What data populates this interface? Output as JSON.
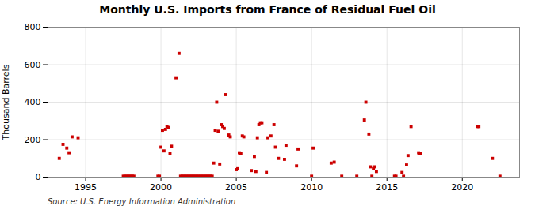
{
  "chart_data": {
    "type": "scatter",
    "title": "Monthly U.S. Imports from France of Residual Fuel Oil",
    "ylabel": "Thousand Barrels",
    "annotations": [
      "Source: U.S. Energy Information Administration"
    ],
    "color": "#cc0000",
    "marker": "square",
    "grid": true,
    "xlim": [
      1992.5,
      2023.8
    ],
    "xticks": [
      1995,
      2000,
      2005,
      2010,
      2015,
      2020
    ],
    "ylim": [
      0,
      800
    ],
    "yticks": [
      0,
      200,
      400,
      600,
      800
    ],
    "x": [
      1993.25,
      1993.5,
      1993.75,
      1993.9,
      1994.1,
      1994.5,
      1997.5,
      1997.6,
      1997.7,
      1997.8,
      1997.9,
      1998.0,
      1998.1,
      1998.2,
      1999.8,
      1999.9,
      2000.0,
      2000.1,
      2000.2,
      2000.3,
      2000.4,
      2000.5,
      2000.6,
      2000.7,
      2001.0,
      2001.2,
      2001.3,
      2001.4,
      2001.5,
      2001.6,
      2001.7,
      2001.8,
      2001.9,
      2002.0,
      2002.1,
      2002.2,
      2002.3,
      2002.4,
      2002.5,
      2002.6,
      2002.7,
      2002.8,
      2002.9,
      2003.0,
      2003.1,
      2003.2,
      2003.3,
      2003.4,
      2003.5,
      2003.6,
      2003.7,
      2003.8,
      2003.9,
      2004.0,
      2004.1,
      2004.2,
      2004.3,
      2004.5,
      2004.6,
      2005.0,
      2005.1,
      2005.2,
      2005.3,
      2005.4,
      2005.5,
      2006.0,
      2006.2,
      2006.3,
      2006.4,
      2006.5,
      2006.6,
      2006.7,
      2007.0,
      2007.1,
      2007.3,
      2007.5,
      2007.6,
      2007.8,
      2008.2,
      2008.3,
      2009.0,
      2009.1,
      2010.0,
      2010.1,
      2011.3,
      2011.5,
      2012.0,
      2013.0,
      2013.5,
      2013.6,
      2013.8,
      2013.9,
      2014.0,
      2014.1,
      2014.2,
      2014.3,
      2015.5,
      2015.6,
      2016.0,
      2016.1,
      2016.3,
      2016.4,
      2016.6,
      2017.1,
      2017.2,
      2021.0,
      2021.1,
      2022.0,
      2022.5
    ],
    "values": [
      100,
      175,
      155,
      130,
      215,
      210,
      5,
      5,
      5,
      5,
      5,
      5,
      5,
      5,
      5,
      5,
      160,
      250,
      140,
      255,
      270,
      265,
      125,
      165,
      530,
      660,
      5,
      5,
      5,
      5,
      5,
      5,
      5,
      5,
      5,
      5,
      5,
      5,
      5,
      5,
      5,
      5,
      5,
      5,
      5,
      5,
      5,
      5,
      75,
      250,
      400,
      245,
      70,
      280,
      270,
      260,
      440,
      225,
      215,
      40,
      45,
      130,
      125,
      220,
      215,
      35,
      110,
      30,
      210,
      280,
      290,
      290,
      25,
      210,
      220,
      280,
      160,
      100,
      95,
      170,
      60,
      150,
      5,
      155,
      75,
      80,
      5,
      5,
      305,
      400,
      230,
      55,
      5,
      45,
      55,
      30,
      5,
      5,
      25,
      5,
      65,
      115,
      270,
      130,
      125,
      270,
      270,
      100,
      5
    ]
  }
}
